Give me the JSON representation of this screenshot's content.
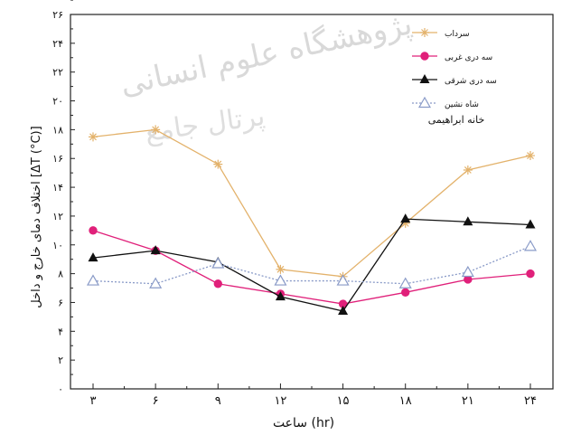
{
  "watermark_lines": [
    "پژوهشگاه علوم انسانی",
    "پرتال جامع"
  ],
  "chart_data": {
    "type": "line",
    "title": "خانه ابراهیمی",
    "xlabel": "ساعت (hr)",
    "ylabel": "اختلاف دمای خارج و داخل [ΔT (°C)]",
    "x": [
      3,
      6,
      9,
      12,
      15,
      18,
      21,
      24
    ],
    "x_tick_labels": [
      "۳",
      "۶",
      "۹",
      "۱۲",
      "۱۵",
      "۱۸",
      "۲۱",
      "۲۴"
    ],
    "xlim": [
      3,
      24
    ],
    "ylim": [
      0,
      26
    ],
    "y_ticks": [
      0,
      2,
      4,
      6,
      8,
      10,
      12,
      14,
      16,
      18,
      20,
      22,
      24,
      26
    ],
    "y_tick_labels": [
      "۰",
      "۲",
      "۴",
      "۶",
      "۸",
      "۱۰",
      "۱۲",
      "۱۴",
      "۱۶",
      "۱۸",
      "۲۰",
      "۲۲",
      "۲۴",
      "۲۶"
    ],
    "grid": false,
    "legend_position": "top-right",
    "series": [
      {
        "name": "سرداب",
        "color": "#e3b26b",
        "marker": "star",
        "dash": "solid",
        "values": [
          17.5,
          18.0,
          15.6,
          8.3,
          7.8,
          11.5,
          15.2,
          16.2
        ]
      },
      {
        "name": "سه دری غربی",
        "color": "#e0207a",
        "marker": "circle",
        "dash": "solid",
        "values": [
          11.0,
          9.6,
          7.3,
          6.6,
          5.9,
          6.7,
          7.6,
          8.0
        ]
      },
      {
        "name": "سه دری شرقی",
        "color": "#111111",
        "marker": "triangle",
        "dash": "solid",
        "values": [
          9.1,
          9.6,
          8.8,
          6.4,
          5.4,
          11.8,
          11.6,
          11.4
        ]
      },
      {
        "name": "شاه نشین",
        "color": "#8a9bc8",
        "marker": "triangle-open",
        "dash": "dotted",
        "values": [
          7.5,
          7.3,
          8.7,
          7.5,
          7.5,
          7.3,
          8.1,
          9.9
        ]
      }
    ]
  }
}
